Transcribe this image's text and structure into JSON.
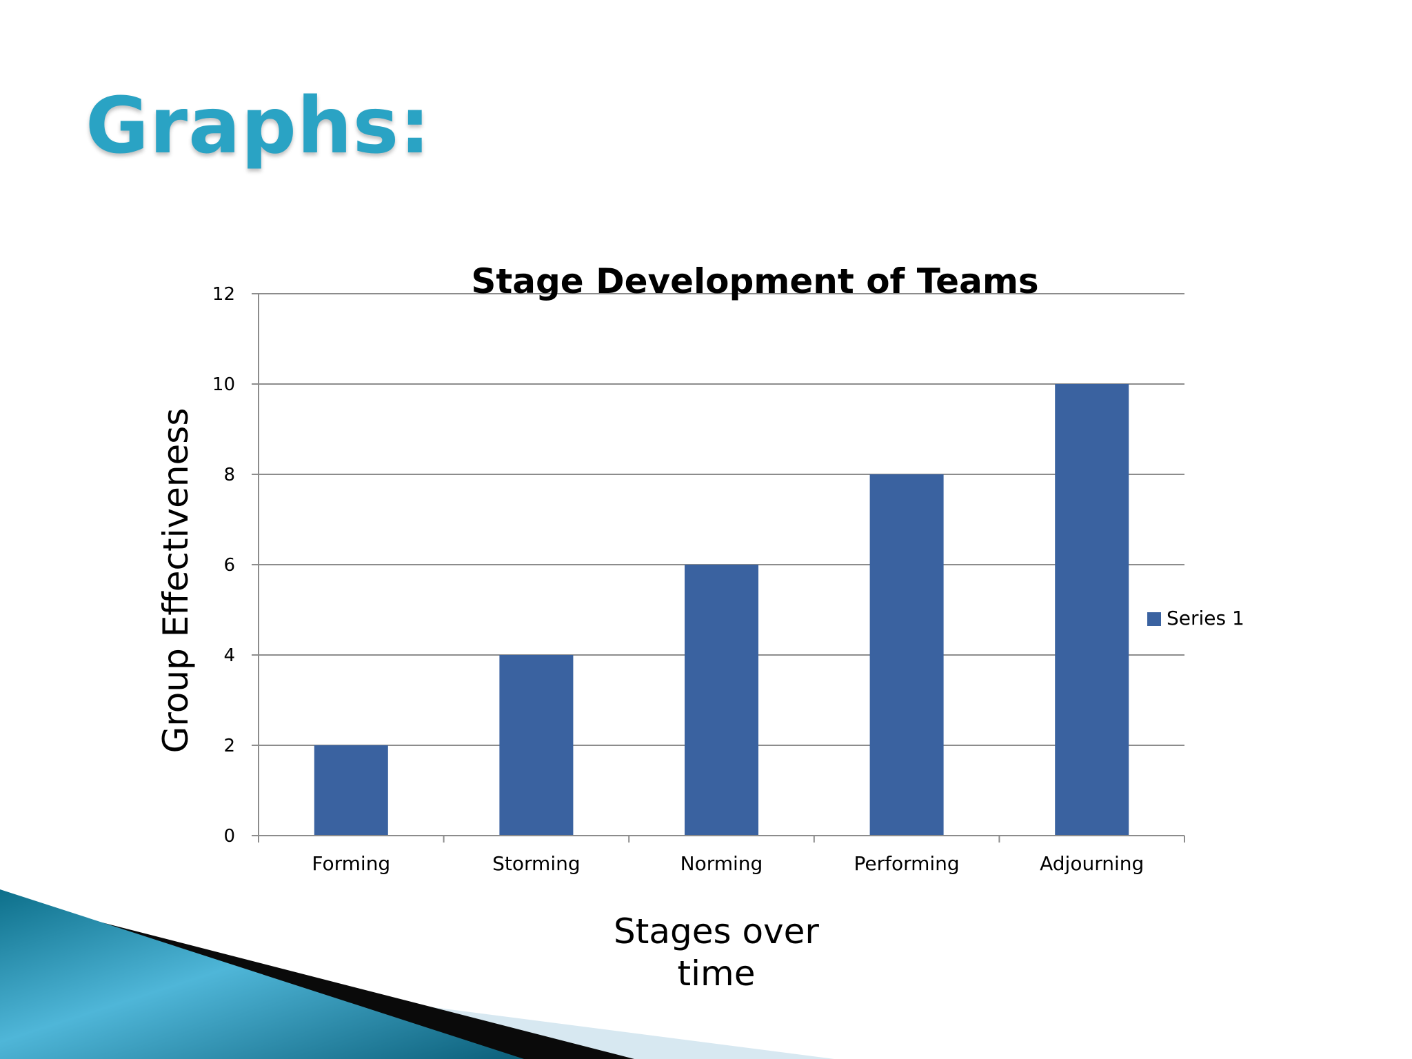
{
  "slide": {
    "title": "Graphs:"
  },
  "colors": {
    "bar": "#3a62a0",
    "grid": "#8c8c8c",
    "title": "#2aa3c4"
  },
  "chart_data": {
    "type": "bar",
    "title": "Stage Development of Teams",
    "categories": [
      "Forming",
      "Storming",
      "Norming",
      "Performing",
      "Adjourning"
    ],
    "series": [
      {
        "name": "Series 1",
        "values": [
          2,
          4,
          6,
          8,
          10
        ]
      }
    ],
    "xlabel": [
      "Stages over",
      "time"
    ],
    "ylabel": "Group Effectiveness",
    "ylim": [
      0,
      12
    ],
    "yticks": [
      0,
      2,
      4,
      6,
      8,
      10,
      12
    ],
    "grid": true,
    "legend": "right"
  }
}
